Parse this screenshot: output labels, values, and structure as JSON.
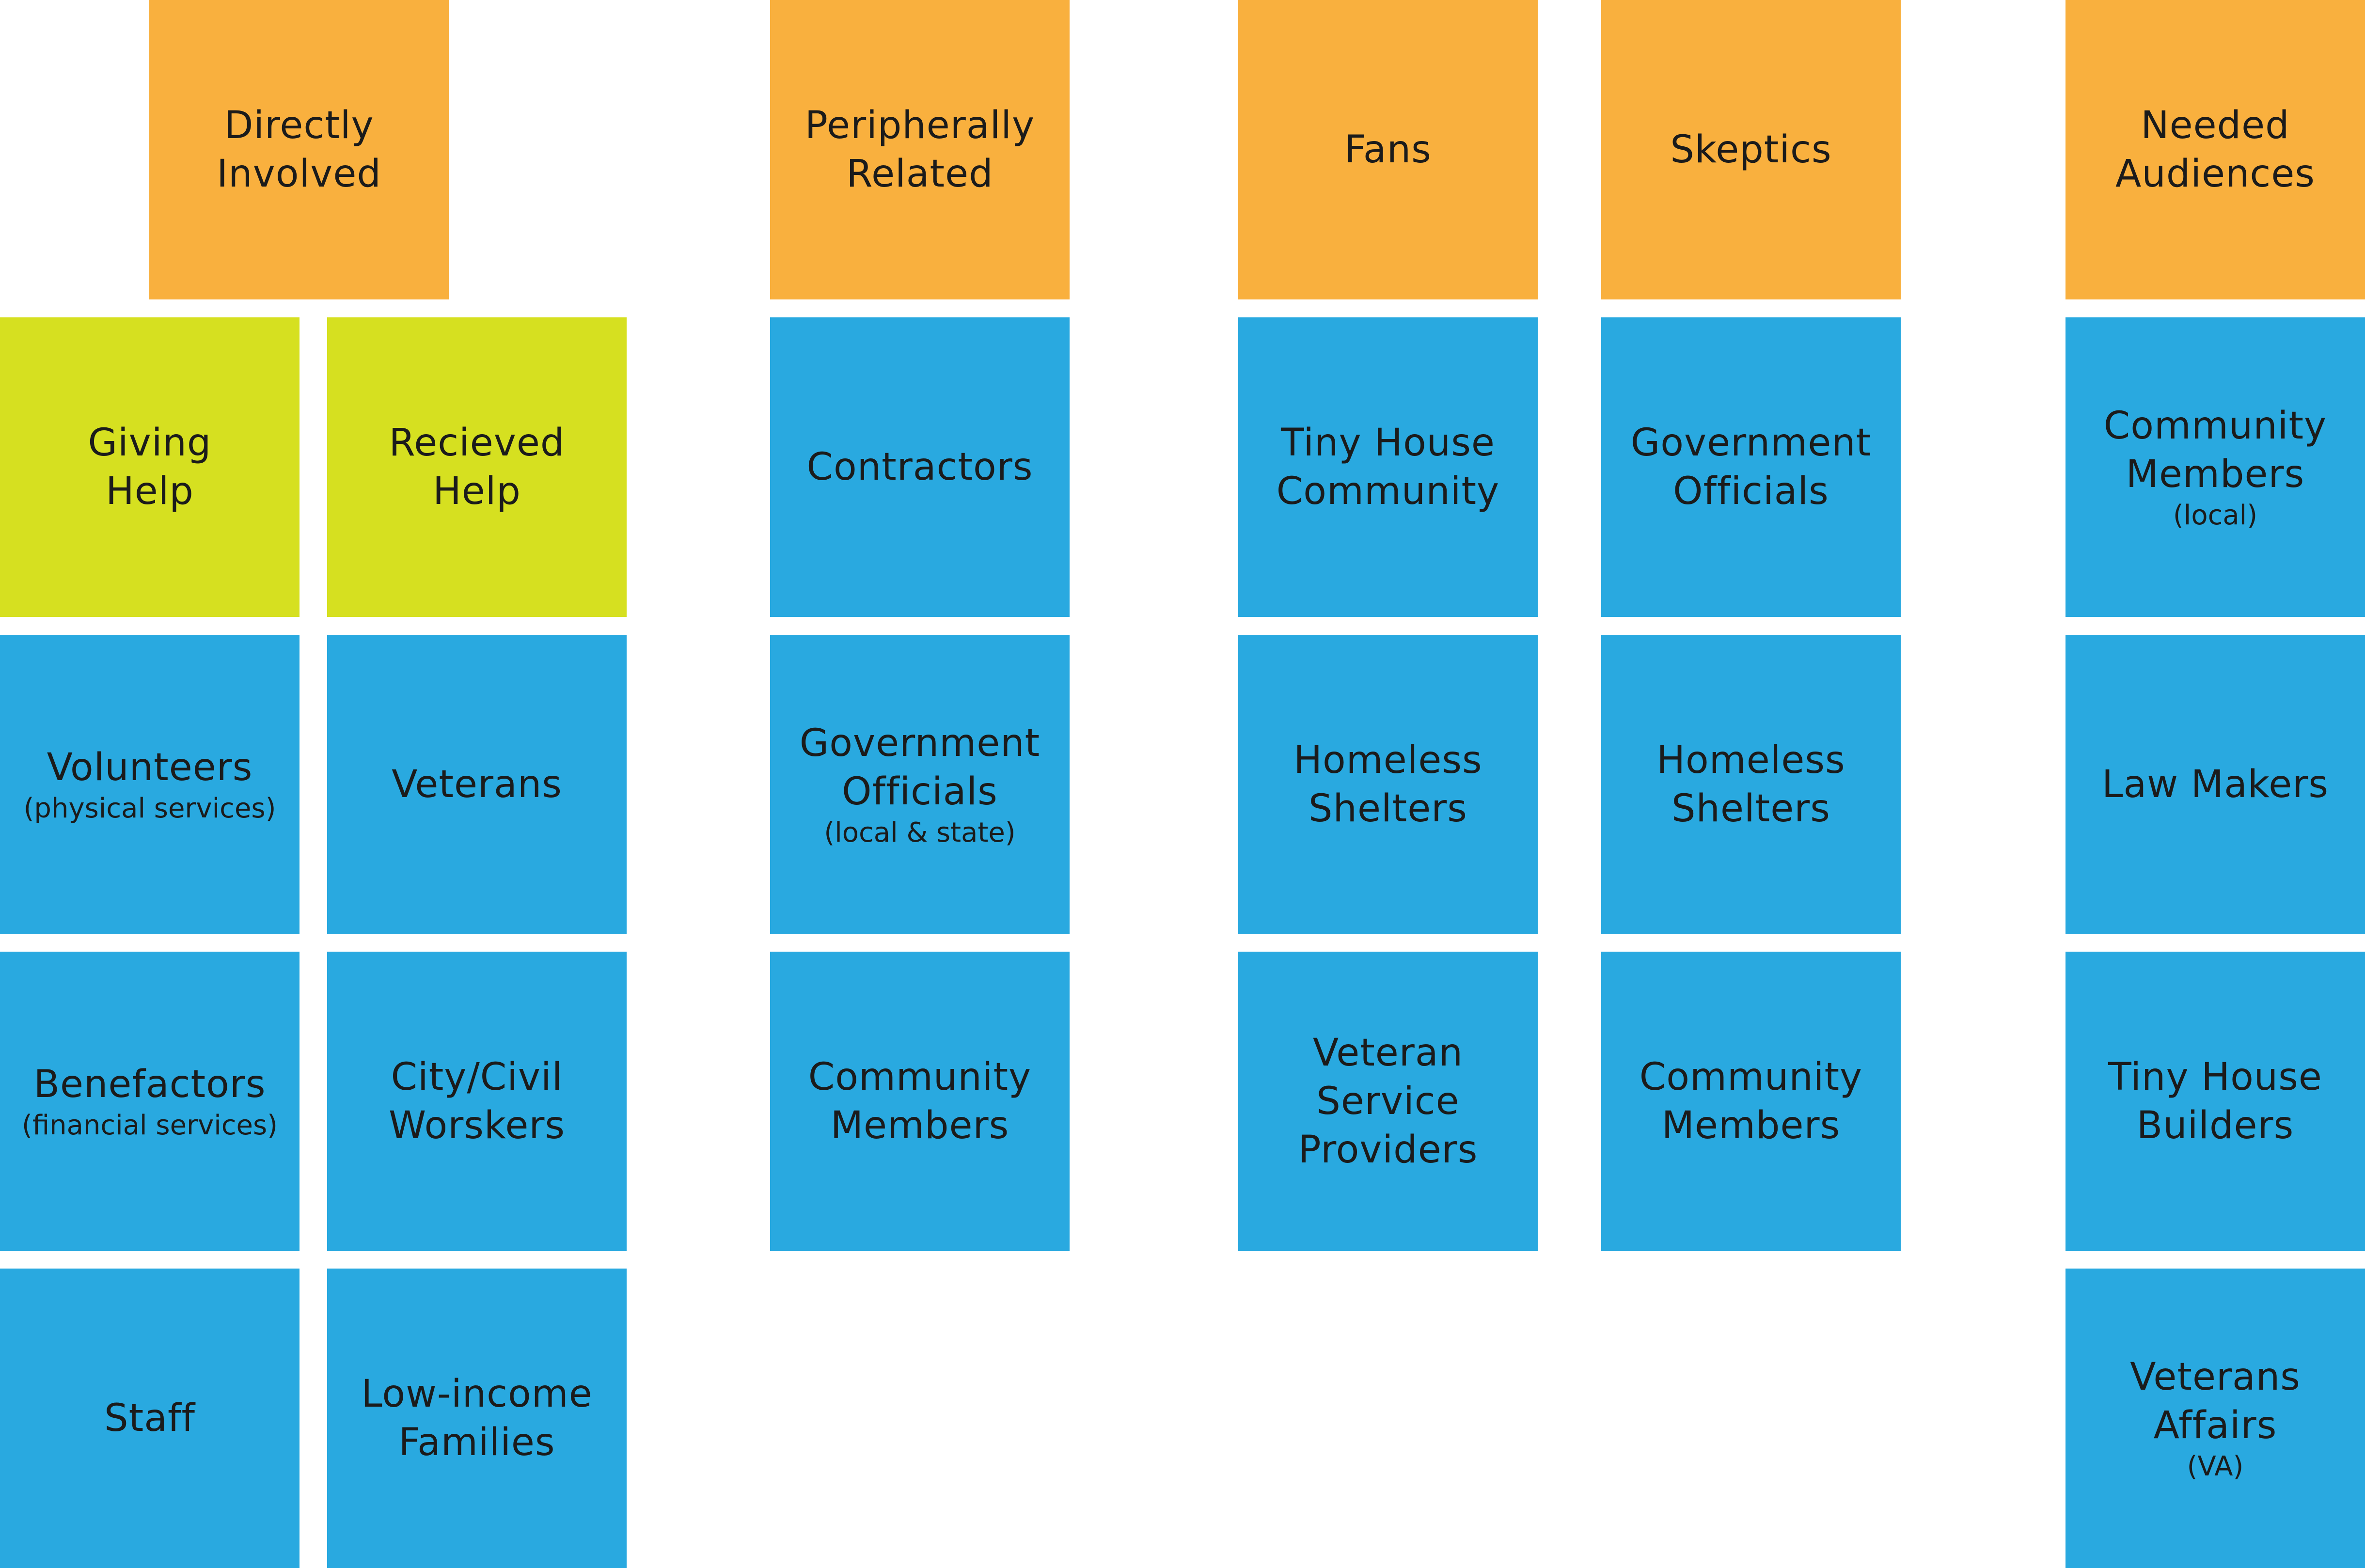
{
  "colors": {
    "header": "#f9b03e",
    "sub_header": "#d6e020",
    "item": "#29a9e0",
    "background": "#ffffff"
  },
  "headers": {
    "directly_involved": "Directly\nInvolved",
    "peripherally_related": "Peripherally\nRelated",
    "fans": "Fans",
    "skeptics": "Skeptics",
    "needed_audiences": "Needed\nAudiences"
  },
  "directly_involved": {
    "giving_help": {
      "label": "Giving\nHelp",
      "items": [
        {
          "label": "Volunteers",
          "note": "(physical services)"
        },
        {
          "label": "Benefactors",
          "note": "(financial services)"
        },
        {
          "label": "Staff"
        }
      ]
    },
    "recieved_help": {
      "label": "Recieved\nHelp",
      "items": [
        {
          "label": "Veterans"
        },
        {
          "label": "City/Civil\nWorskers"
        },
        {
          "label": "Low-income\nFamilies"
        }
      ]
    }
  },
  "peripherally_related": {
    "items": [
      {
        "label": "Contractors"
      },
      {
        "label": "Government\nOfficials",
        "note": "(local & state)"
      },
      {
        "label": "Community\nMembers"
      }
    ]
  },
  "fans": {
    "items": [
      {
        "label": "Tiny House\nCommunity"
      },
      {
        "label": "Homeless\nShelters"
      },
      {
        "label": "Veteran\nService\nProviders"
      }
    ]
  },
  "skeptics": {
    "items": [
      {
        "label": "Government\nOfficials"
      },
      {
        "label": "Homeless\nShelters"
      },
      {
        "label": "Community\nMembers"
      }
    ]
  },
  "needed_audiences": {
    "items": [
      {
        "label": "Community\nMembers",
        "note": "(local)"
      },
      {
        "label": "Law Makers"
      },
      {
        "label": "Tiny House\nBuilders"
      },
      {
        "label": "Veterans\nAffairs",
        "note": "(VA)"
      }
    ]
  }
}
